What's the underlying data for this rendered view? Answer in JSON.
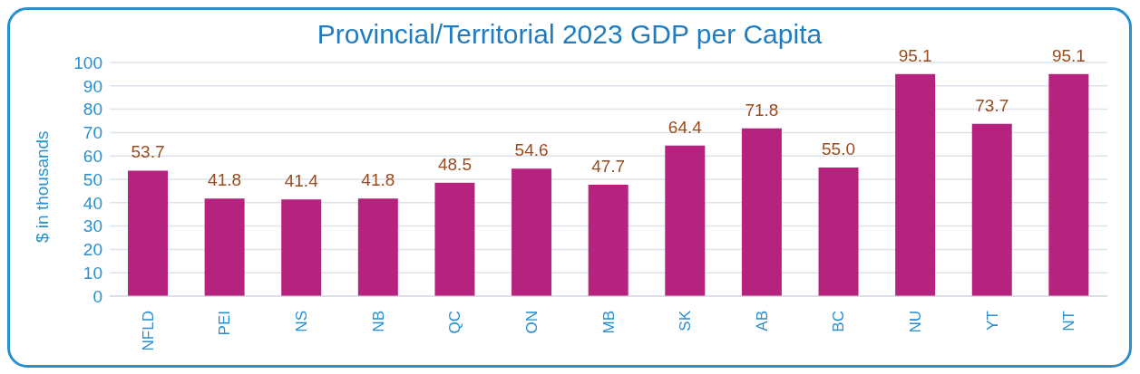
{
  "chart_data": {
    "type": "bar",
    "title": "Provincial/Territorial 2023 GDP per Capita",
    "ylabel": "$ in thousands",
    "categories": [
      "NFLD",
      "PEI",
      "NS",
      "NB",
      "QC",
      "ON",
      "MB",
      "SK",
      "AB",
      "BC",
      "NU",
      "YT",
      "NT"
    ],
    "values": [
      53.7,
      41.8,
      41.4,
      41.8,
      48.5,
      54.6,
      47.7,
      64.4,
      71.8,
      55.0,
      95.1,
      73.7,
      95.1
    ],
    "value_labels": [
      "53.7",
      "41.8",
      "41.4",
      "41.8",
      "48.5",
      "54.6",
      "47.7",
      "64.4",
      "71.8",
      "55.0",
      "95.1",
      "73.7",
      "95.1"
    ],
    "color": "#b5237f",
    "ylim": [
      0,
      100
    ],
    "yticks": [
      0,
      10,
      20,
      30,
      40,
      50,
      60,
      70,
      80,
      90,
      100
    ],
    "grid": "y"
  }
}
